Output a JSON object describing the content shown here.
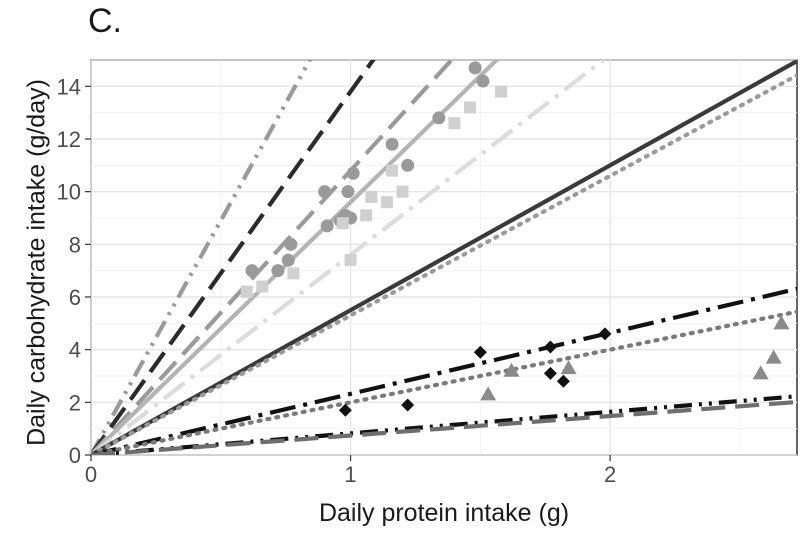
{
  "panel_label": "C.",
  "chart_data": {
    "type": "scatter",
    "title": "",
    "xlabel": "Daily protein intake (g)",
    "ylabel": "Daily carbohydrate intake (g/day)",
    "xlim": [
      0,
      2.72
    ],
    "ylim": [
      0,
      15
    ],
    "x_ticks": [
      0,
      1,
      2
    ],
    "y_ticks": [
      0,
      2,
      4,
      6,
      8,
      10,
      12,
      14
    ],
    "grid": true,
    "legend": "none",
    "lines": [
      {
        "slope": 17.8,
        "color": "#9a9a9a",
        "dash": "dash-dot-dot"
      },
      {
        "slope": 13.8,
        "color": "#2b2b2b",
        "dash": "long-dash"
      },
      {
        "slope": 10.8,
        "color": "#9a9a9a",
        "dash": "long-dash"
      },
      {
        "slope": 9.6,
        "color": "#b4b4b4",
        "dash": "solid"
      },
      {
        "slope": 7.6,
        "color": "#dcdcdc",
        "dash": "long-dash-dot"
      },
      {
        "slope": 5.5,
        "color": "#3a3a3a",
        "dash": "solid"
      },
      {
        "slope": 5.3,
        "color": "#9a9a9a",
        "dash": "dotted"
      },
      {
        "slope": 2.32,
        "color": "#111111",
        "dash": "long-dash-dot"
      },
      {
        "slope": 2.0,
        "color": "#7a7a7a",
        "dash": "dotted"
      },
      {
        "slope": 0.82,
        "color": "#111111",
        "dash": "dash-dot-dot"
      },
      {
        "slope": 0.74,
        "color": "#6e6e6e",
        "dash": "long-dash"
      }
    ],
    "series": [
      {
        "marker": "circle",
        "color": "#9a9a9a",
        "points": [
          [
            0.62,
            7.0
          ],
          [
            0.72,
            7.0
          ],
          [
            0.76,
            7.4
          ],
          [
            0.77,
            8.0
          ],
          [
            0.9,
            10.0
          ],
          [
            0.91,
            8.7
          ],
          [
            0.96,
            8.9
          ],
          [
            0.98,
            9.1
          ],
          [
            0.99,
            10.0
          ],
          [
            1.0,
            9.0
          ],
          [
            1.01,
            10.7
          ],
          [
            1.16,
            11.8
          ],
          [
            1.22,
            11.0
          ],
          [
            1.34,
            12.8
          ],
          [
            1.48,
            14.7
          ],
          [
            1.51,
            14.2
          ]
        ]
      },
      {
        "marker": "square",
        "color": "#d0d0d0",
        "points": [
          [
            0.6,
            6.2
          ],
          [
            0.66,
            6.4
          ],
          [
            0.78,
            6.9
          ],
          [
            0.97,
            8.8
          ],
          [
            1.0,
            7.4
          ],
          [
            1.06,
            9.1
          ],
          [
            1.08,
            9.8
          ],
          [
            1.14,
            9.6
          ],
          [
            1.16,
            10.8
          ],
          [
            1.2,
            10.0
          ],
          [
            1.4,
            12.6
          ],
          [
            1.46,
            13.2
          ],
          [
            1.58,
            13.8
          ]
        ]
      },
      {
        "marker": "diamond",
        "color": "#111111",
        "points": [
          [
            0.98,
            1.7
          ],
          [
            1.22,
            1.9
          ],
          [
            1.5,
            3.9
          ],
          [
            1.77,
            4.1
          ],
          [
            1.77,
            3.1
          ],
          [
            1.82,
            2.8
          ],
          [
            1.98,
            4.6
          ]
        ]
      },
      {
        "marker": "triangle",
        "color": "#8a8a8a",
        "points": [
          [
            1.53,
            2.3
          ],
          [
            1.62,
            3.2
          ],
          [
            1.84,
            3.3
          ],
          [
            2.58,
            3.1
          ],
          [
            2.63,
            3.7
          ],
          [
            2.66,
            5.0
          ]
        ]
      }
    ]
  }
}
